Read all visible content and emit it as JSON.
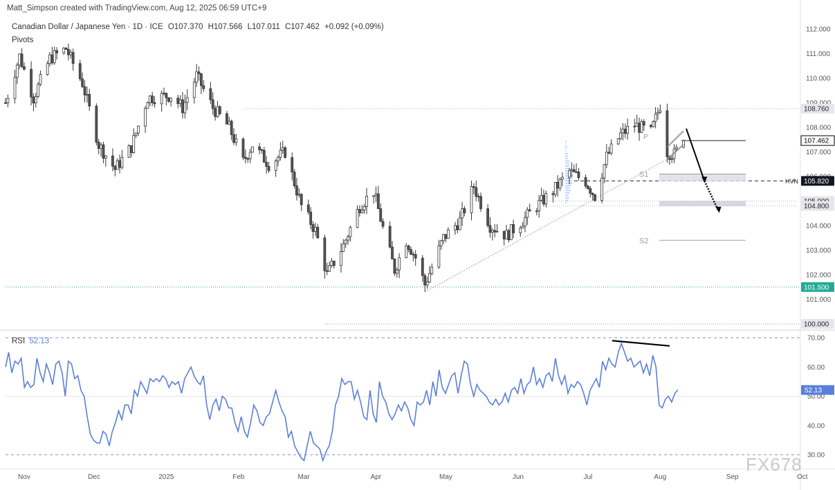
{
  "watermark": "Matt_Simpson created with TradingView.com, Aug 12, 2025 06:59 UTC+9",
  "legend": {
    "symbol": "Canadian Dollar / Japanese Yen · 1D · ICE",
    "open": "O107.370",
    "high": "H107.566",
    "low": "L107.011",
    "close": "C107.462",
    "change": "+0.092 (+0.09%)",
    "indicator": "Pivots"
  },
  "rsi_legend": {
    "name": "RSI",
    "value": "52.13"
  },
  "brand": "FX678",
  "colors": {
    "up": "#ffffff",
    "down": "#555555",
    "wick": "#333333",
    "rsi_line": "#5b7fd9",
    "green_level": "#22ab94",
    "label_dark": "#131722",
    "volume_profile": "#7ea6ff"
  },
  "chart_data": [
    {
      "type": "candlestick",
      "title": "Canadian Dollar / Japanese Yen · 1D · ICE",
      "ylim": [
        100.0,
        112.0
      ],
      "y_ticks": [
        101.0,
        102.0,
        103.0,
        104.0,
        105.0,
        106.0,
        107.0,
        108.0,
        109.0,
        110.0,
        111.0,
        112.0
      ],
      "x_ticks": [
        "Nov",
        "Dec",
        "2025",
        "Feb",
        "Mar",
        "Apr",
        "May",
        "Jun",
        "Jul",
        "Aug",
        "Sep",
        "Oct"
      ],
      "price_labels": [
        {
          "value": 108.76,
          "text": "108.760"
        },
        {
          "value": 107.462,
          "text": "107.462"
        },
        {
          "value": 105.82,
          "text": "105.820",
          "tag": "HVN"
        },
        {
          "value": 105.0,
          "text": "105.000"
        },
        {
          "value": 104.8,
          "text": "104.800"
        },
        {
          "value": 101.5,
          "text": "101.500"
        },
        {
          "value": 100.0,
          "text": "100.000"
        }
      ],
      "pivots": [
        {
          "name": "P",
          "value": 107.462
        },
        {
          "name": "S1",
          "value": 106.1
        },
        {
          "name": "S2",
          "value": 103.4
        }
      ],
      "anchors": [
        {
          "date": "2024-10-24",
          "price": 109.0
        },
        {
          "date": "2024-10-30",
          "price": 110.9
        },
        {
          "date": "2024-11-05",
          "price": 109.2
        },
        {
          "date": "2024-11-12",
          "price": 110.8
        },
        {
          "date": "2024-11-19",
          "price": 111.2
        },
        {
          "date": "2024-11-26",
          "price": 109.8
        },
        {
          "date": "2024-12-03",
          "price": 107.3
        },
        {
          "date": "2024-12-10",
          "price": 106.3
        },
        {
          "date": "2024-12-17",
          "price": 107.2
        },
        {
          "date": "2024-12-24",
          "price": 109.2
        },
        {
          "date": "2025-01-03",
          "price": 109.3
        },
        {
          "date": "2025-01-08",
          "price": 108.8
        },
        {
          "date": "2025-01-14",
          "price": 110.1
        },
        {
          "date": "2025-01-21",
          "price": 108.8
        },
        {
          "date": "2025-01-28",
          "price": 108.0
        },
        {
          "date": "2025-02-03",
          "price": 106.6
        },
        {
          "date": "2025-02-07",
          "price": 107.3
        },
        {
          "date": "2025-02-14",
          "price": 106.5
        },
        {
          "date": "2025-02-21",
          "price": 107.0
        },
        {
          "date": "2025-02-28",
          "price": 104.8
        },
        {
          "date": "2025-03-06",
          "price": 103.8
        },
        {
          "date": "2025-03-11",
          "price": 102.0
        },
        {
          "date": "2025-03-18",
          "price": 103.2
        },
        {
          "date": "2025-03-25",
          "price": 104.8
        },
        {
          "date": "2025-03-31",
          "price": 105.4
        },
        {
          "date": "2025-04-04",
          "price": 103.9
        },
        {
          "date": "2025-04-09",
          "price": 102.2
        },
        {
          "date": "2025-04-14",
          "price": 103.4
        },
        {
          "date": "2025-04-18",
          "price": 102.7
        },
        {
          "date": "2025-04-22",
          "price": 101.6
        },
        {
          "date": "2025-04-30",
          "price": 103.5
        },
        {
          "date": "2025-05-07",
          "price": 104.2
        },
        {
          "date": "2025-05-13",
          "price": 105.6
        },
        {
          "date": "2025-05-20",
          "price": 104.0
        },
        {
          "date": "2025-05-27",
          "price": 103.6
        },
        {
          "date": "2025-06-03",
          "price": 104.2
        },
        {
          "date": "2025-06-09",
          "price": 104.8
        },
        {
          "date": "2025-06-16",
          "price": 105.4
        },
        {
          "date": "2025-06-23",
          "price": 106.2
        },
        {
          "date": "2025-06-30",
          "price": 105.8
        },
        {
          "date": "2025-07-04",
          "price": 105.2
        },
        {
          "date": "2025-07-09",
          "price": 106.8
        },
        {
          "date": "2025-07-15",
          "price": 107.7
        },
        {
          "date": "2025-07-21",
          "price": 108.1
        },
        {
          "date": "2025-07-28",
          "price": 107.8
        },
        {
          "date": "2025-08-01",
          "price": 108.9
        },
        {
          "date": "2025-08-04",
          "price": 107.0
        },
        {
          "date": "2025-08-07",
          "price": 106.9
        },
        {
          "date": "2025-08-11",
          "price": 107.46
        }
      ],
      "projection": [
        {
          "date": "2025-08-11",
          "price": 107.95
        },
        {
          "date": "2025-08-20",
          "price": 105.82
        },
        {
          "date": "2025-08-26",
          "price": 104.6
        }
      ],
      "trendline": [
        {
          "date": "2025-04-22",
          "price": 101.3
        },
        {
          "date": "2025-08-04",
          "price": 106.7
        }
      ],
      "channel": [
        {
          "date": "2025-08-04",
          "price": 107.2
        },
        {
          "date": "2025-08-11",
          "price": 107.85
        },
        {
          "date": "2025-08-04",
          "price": 106.7
        },
        {
          "date": "2025-08-11",
          "price": 107.3
        }
      ]
    },
    {
      "type": "line",
      "title": "RSI",
      "series_name": "RSI",
      "ylim": [
        27,
        72
      ],
      "y_ticks": [
        30.0,
        40.0,
        50.0,
        60.0,
        70.0
      ],
      "levels": [
        70,
        30
      ],
      "current": 52.13,
      "values": [
        60,
        65,
        58,
        62,
        61,
        63,
        53,
        55,
        53,
        54,
        63,
        58,
        55,
        61,
        58,
        54,
        61,
        62,
        58,
        50,
        62,
        61,
        56,
        57,
        52,
        50,
        43,
        37,
        35,
        34,
        34,
        38,
        37,
        33,
        38,
        41,
        45,
        42,
        47,
        47,
        44,
        52,
        50,
        55,
        53,
        51,
        56,
        55,
        56,
        55,
        57,
        56,
        53,
        55,
        54,
        55,
        51,
        56,
        58,
        60,
        57,
        55,
        54,
        57,
        47,
        42,
        47,
        49,
        45,
        50,
        49,
        46,
        46,
        41,
        38,
        43,
        38,
        36,
        41,
        47,
        45,
        41,
        40,
        43,
        44,
        48,
        52,
        48,
        45,
        43,
        36,
        38,
        33,
        31,
        29,
        28,
        33,
        38,
        34,
        33,
        32,
        28,
        31,
        33,
        38,
        47,
        50,
        56,
        54,
        55,
        55,
        49,
        52,
        48,
        43,
        42,
        52,
        44,
        41,
        55,
        50,
        48,
        44,
        42,
        44,
        47,
        45,
        48,
        46,
        42,
        40,
        48,
        47,
        48,
        52,
        47,
        55,
        50,
        59,
        53,
        51,
        54,
        57,
        58,
        51,
        57,
        62,
        61,
        54,
        50,
        54,
        52,
        51,
        50,
        48,
        47,
        49,
        47,
        48,
        51,
        48,
        52,
        53,
        51,
        56,
        51,
        54,
        55,
        60,
        54,
        56,
        53,
        57,
        58,
        55,
        63,
        57,
        54,
        57,
        51,
        54,
        53,
        55,
        54,
        51,
        47,
        52,
        54,
        56,
        53,
        62,
        59,
        63,
        61,
        60,
        65,
        68,
        65,
        62,
        63,
        60,
        61,
        62,
        58,
        61,
        57,
        64,
        60,
        47,
        46,
        49,
        50,
        48,
        51,
        52.13
      ]
    }
  ]
}
